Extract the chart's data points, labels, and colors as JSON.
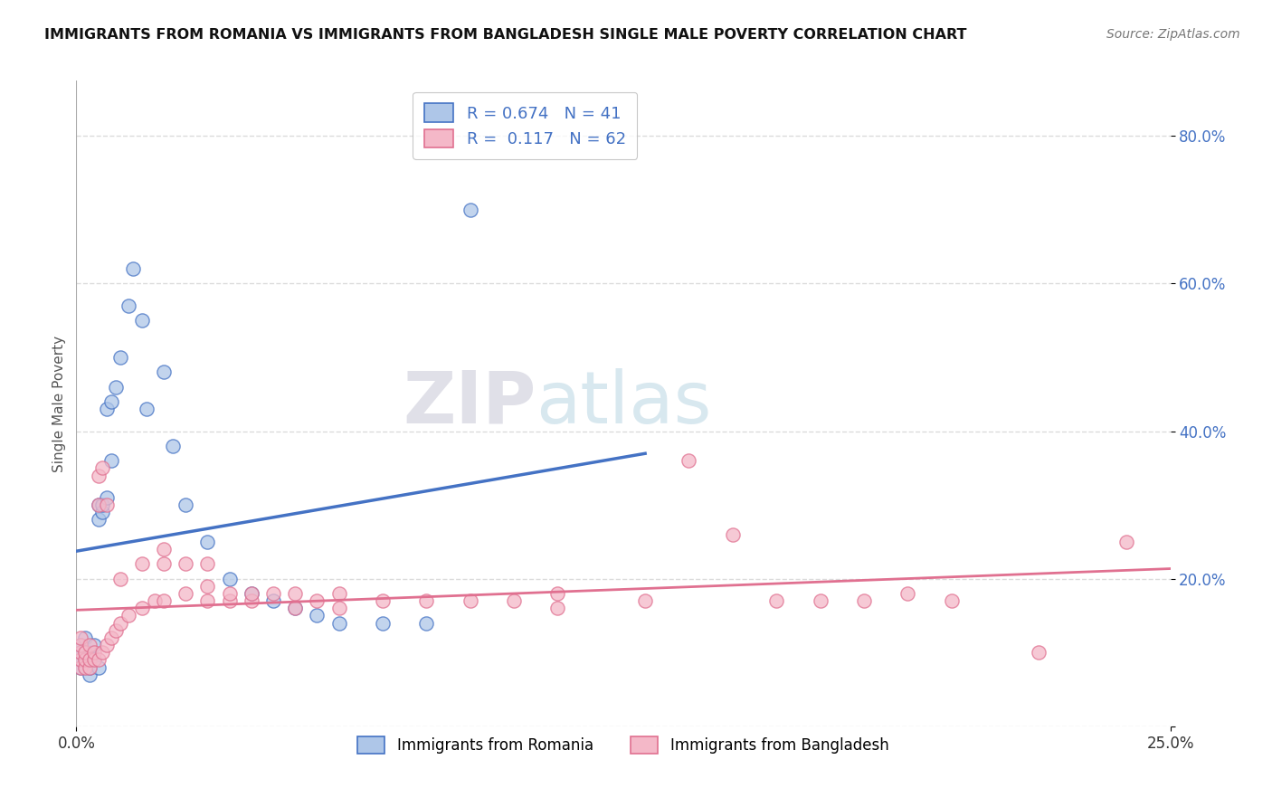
{
  "title": "IMMIGRANTS FROM ROMANIA VS IMMIGRANTS FROM BANGLADESH SINGLE MALE POVERTY CORRELATION CHART",
  "source": "Source: ZipAtlas.com",
  "ylabel": "Single Male Poverty",
  "legend_romania": {
    "label": "Immigrants from Romania",
    "R": 0.674,
    "N": 41,
    "color": "#aec6e8",
    "line_color": "#4472c4"
  },
  "legend_bangladesh": {
    "label": "Immigrants from Bangladesh",
    "R": 0.117,
    "N": 62,
    "color": "#f4b8c8",
    "line_color": "#e07090"
  },
  "watermark_zip": "ZIP",
  "watermark_atlas": "atlas",
  "romania_points": [
    [
      0.001,
      0.08
    ],
    [
      0.001,
      0.09
    ],
    [
      0.001,
      0.1
    ],
    [
      0.001,
      0.11
    ],
    [
      0.002,
      0.08
    ],
    [
      0.002,
      0.09
    ],
    [
      0.002,
      0.1
    ],
    [
      0.002,
      0.12
    ],
    [
      0.003,
      0.07
    ],
    [
      0.003,
      0.08
    ],
    [
      0.003,
      0.1
    ],
    [
      0.004,
      0.09
    ],
    [
      0.004,
      0.11
    ],
    [
      0.005,
      0.08
    ],
    [
      0.005,
      0.28
    ],
    [
      0.005,
      0.3
    ],
    [
      0.006,
      0.29
    ],
    [
      0.006,
      0.3
    ],
    [
      0.007,
      0.31
    ],
    [
      0.007,
      0.43
    ],
    [
      0.008,
      0.44
    ],
    [
      0.008,
      0.36
    ],
    [
      0.009,
      0.46
    ],
    [
      0.01,
      0.5
    ],
    [
      0.012,
      0.57
    ],
    [
      0.013,
      0.62
    ],
    [
      0.015,
      0.55
    ],
    [
      0.016,
      0.43
    ],
    [
      0.02,
      0.48
    ],
    [
      0.022,
      0.38
    ],
    [
      0.025,
      0.3
    ],
    [
      0.03,
      0.25
    ],
    [
      0.035,
      0.2
    ],
    [
      0.04,
      0.18
    ],
    [
      0.045,
      0.17
    ],
    [
      0.05,
      0.16
    ],
    [
      0.055,
      0.15
    ],
    [
      0.06,
      0.14
    ],
    [
      0.07,
      0.14
    ],
    [
      0.08,
      0.14
    ],
    [
      0.09,
      0.7
    ]
  ],
  "bangladesh_points": [
    [
      0.001,
      0.08
    ],
    [
      0.001,
      0.09
    ],
    [
      0.001,
      0.1
    ],
    [
      0.001,
      0.11
    ],
    [
      0.001,
      0.12
    ],
    [
      0.002,
      0.08
    ],
    [
      0.002,
      0.09
    ],
    [
      0.002,
      0.1
    ],
    [
      0.003,
      0.08
    ],
    [
      0.003,
      0.09
    ],
    [
      0.003,
      0.11
    ],
    [
      0.004,
      0.09
    ],
    [
      0.004,
      0.1
    ],
    [
      0.005,
      0.09
    ],
    [
      0.005,
      0.3
    ],
    [
      0.005,
      0.34
    ],
    [
      0.006,
      0.1
    ],
    [
      0.006,
      0.35
    ],
    [
      0.007,
      0.11
    ],
    [
      0.007,
      0.3
    ],
    [
      0.008,
      0.12
    ],
    [
      0.009,
      0.13
    ],
    [
      0.01,
      0.14
    ],
    [
      0.01,
      0.2
    ],
    [
      0.012,
      0.15
    ],
    [
      0.015,
      0.16
    ],
    [
      0.015,
      0.22
    ],
    [
      0.018,
      0.17
    ],
    [
      0.02,
      0.17
    ],
    [
      0.02,
      0.22
    ],
    [
      0.02,
      0.24
    ],
    [
      0.025,
      0.18
    ],
    [
      0.025,
      0.22
    ],
    [
      0.03,
      0.17
    ],
    [
      0.03,
      0.19
    ],
    [
      0.03,
      0.22
    ],
    [
      0.035,
      0.17
    ],
    [
      0.035,
      0.18
    ],
    [
      0.04,
      0.17
    ],
    [
      0.04,
      0.18
    ],
    [
      0.045,
      0.18
    ],
    [
      0.05,
      0.16
    ],
    [
      0.05,
      0.18
    ],
    [
      0.055,
      0.17
    ],
    [
      0.06,
      0.16
    ],
    [
      0.06,
      0.18
    ],
    [
      0.07,
      0.17
    ],
    [
      0.08,
      0.17
    ],
    [
      0.09,
      0.17
    ],
    [
      0.1,
      0.17
    ],
    [
      0.11,
      0.16
    ],
    [
      0.11,
      0.18
    ],
    [
      0.13,
      0.17
    ],
    [
      0.14,
      0.36
    ],
    [
      0.15,
      0.26
    ],
    [
      0.16,
      0.17
    ],
    [
      0.17,
      0.17
    ],
    [
      0.18,
      0.17
    ],
    [
      0.19,
      0.18
    ],
    [
      0.2,
      0.17
    ],
    [
      0.22,
      0.1
    ],
    [
      0.24,
      0.25
    ]
  ],
  "xlim": [
    0.0,
    0.25
  ],
  "ylim": [
    0.0,
    0.875
  ],
  "yticks": [
    0.0,
    0.2,
    0.4,
    0.6,
    0.8
  ],
  "ytick_labels": [
    "",
    "20.0%",
    "40.0%",
    "60.0%",
    "80.0%"
  ],
  "xtick_labels": [
    "0.0%",
    "25.0%"
  ],
  "background_color": "#ffffff",
  "grid_color": "#cccccc",
  "plot_bg_color": "#ffffff"
}
